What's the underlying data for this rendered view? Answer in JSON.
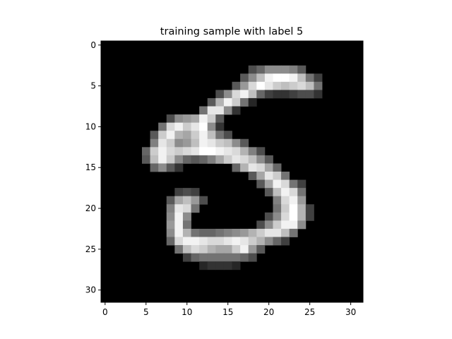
{
  "chart_data": {
    "type": "heatmap",
    "title": "training sample with label 5",
    "xlabel": "",
    "ylabel": "",
    "colormap": "gray",
    "value_range": [
      0,
      1
    ],
    "rows": 32,
    "cols": 32,
    "xlim": [
      -0.5,
      31.5
    ],
    "ylim": [
      31.5,
      -0.5
    ],
    "x_ticks": [
      0,
      5,
      10,
      15,
      20,
      25,
      30
    ],
    "y_ticks": [
      0,
      5,
      10,
      15,
      20,
      25,
      30
    ],
    "x_tick_labels": [
      "0",
      "5",
      "10",
      "15",
      "20",
      "25",
      "30"
    ],
    "y_tick_labels": [
      "0",
      "5",
      "10",
      "15",
      "20",
      "25",
      "30"
    ],
    "grid": false,
    "pixels": [
      [
        3,
        18,
        0.3
      ],
      [
        3,
        19,
        0.4
      ],
      [
        3,
        20,
        0.55
      ],
      [
        3,
        21,
        0.55
      ],
      [
        3,
        22,
        0.55
      ],
      [
        3,
        23,
        0.5
      ],
      [
        3,
        24,
        0.35
      ],
      [
        4,
        17,
        0.35
      ],
      [
        4,
        18,
        0.55
      ],
      [
        4,
        19,
        0.75
      ],
      [
        4,
        20,
        0.95
      ],
      [
        4,
        21,
        1.0
      ],
      [
        4,
        22,
        1.0
      ],
      [
        4,
        23,
        0.95
      ],
      [
        4,
        24,
        0.75
      ],
      [
        4,
        25,
        0.45
      ],
      [
        4,
        26,
        0.25
      ],
      [
        5,
        16,
        0.35
      ],
      [
        5,
        17,
        0.6
      ],
      [
        5,
        18,
        0.85
      ],
      [
        5,
        19,
        1.0
      ],
      [
        5,
        20,
        0.9
      ],
      [
        5,
        21,
        0.8
      ],
      [
        5,
        22,
        0.75
      ],
      [
        5,
        23,
        0.8
      ],
      [
        5,
        24,
        0.85
      ],
      [
        5,
        25,
        0.75
      ],
      [
        5,
        26,
        0.45
      ],
      [
        6,
        14,
        0.3
      ],
      [
        6,
        15,
        0.55
      ],
      [
        6,
        16,
        0.85
      ],
      [
        6,
        17,
        0.95
      ],
      [
        6,
        18,
        0.75
      ],
      [
        6,
        19,
        0.4
      ],
      [
        6,
        20,
        0.25
      ],
      [
        6,
        21,
        0.2
      ],
      [
        6,
        22,
        0.2
      ],
      [
        6,
        23,
        0.25
      ],
      [
        6,
        24,
        0.3
      ],
      [
        6,
        25,
        0.3
      ],
      [
        6,
        26,
        0.2
      ],
      [
        7,
        13,
        0.35
      ],
      [
        7,
        14,
        0.7
      ],
      [
        7,
        15,
        0.95
      ],
      [
        7,
        16,
        0.8
      ],
      [
        7,
        17,
        0.45
      ],
      [
        7,
        18,
        0.15
      ],
      [
        8,
        12,
        0.45
      ],
      [
        8,
        13,
        0.9
      ],
      [
        8,
        14,
        0.9
      ],
      [
        8,
        15,
        0.55
      ],
      [
        8,
        16,
        0.2
      ],
      [
        9,
        8,
        0.3
      ],
      [
        9,
        9,
        0.55
      ],
      [
        9,
        10,
        0.6
      ],
      [
        9,
        11,
        0.65
      ],
      [
        9,
        12,
        0.95
      ],
      [
        9,
        13,
        0.8
      ],
      [
        9,
        14,
        0.35
      ],
      [
        10,
        7,
        0.45
      ],
      [
        10,
        8,
        0.85
      ],
      [
        10,
        9,
        0.95
      ],
      [
        10,
        10,
        0.8
      ],
      [
        10,
        11,
        0.9
      ],
      [
        10,
        12,
        1.0
      ],
      [
        10,
        13,
        0.55
      ],
      [
        10,
        14,
        0.2
      ],
      [
        11,
        6,
        0.35
      ],
      [
        11,
        7,
        0.8
      ],
      [
        11,
        8,
        0.95
      ],
      [
        11,
        9,
        0.7
      ],
      [
        11,
        10,
        0.65
      ],
      [
        11,
        11,
        0.8
      ],
      [
        11,
        12,
        0.95
      ],
      [
        11,
        13,
        0.75
      ],
      [
        11,
        14,
        0.45
      ],
      [
        11,
        15,
        0.3
      ],
      [
        12,
        6,
        0.5
      ],
      [
        12,
        7,
        0.9
      ],
      [
        12,
        8,
        0.8
      ],
      [
        12,
        9,
        0.55
      ],
      [
        12,
        10,
        0.6
      ],
      [
        12,
        11,
        0.75
      ],
      [
        12,
        12,
        0.95
      ],
      [
        12,
        13,
        0.9
      ],
      [
        12,
        14,
        0.8
      ],
      [
        12,
        15,
        0.75
      ],
      [
        12,
        16,
        0.55
      ],
      [
        12,
        17,
        0.35
      ],
      [
        13,
        5,
        0.4
      ],
      [
        13,
        6,
        0.8
      ],
      [
        13,
        7,
        0.95
      ],
      [
        13,
        8,
        0.85
      ],
      [
        13,
        9,
        0.8
      ],
      [
        13,
        10,
        0.85
      ],
      [
        13,
        11,
        0.9
      ],
      [
        13,
        12,
        1.0
      ],
      [
        13,
        13,
        1.0
      ],
      [
        13,
        14,
        0.95
      ],
      [
        13,
        15,
        0.9
      ],
      [
        13,
        16,
        0.85
      ],
      [
        13,
        17,
        0.7
      ],
      [
        13,
        18,
        0.5
      ],
      [
        13,
        19,
        0.3
      ],
      [
        14,
        5,
        0.35
      ],
      [
        14,
        6,
        0.75
      ],
      [
        14,
        7,
        0.95
      ],
      [
        14,
        8,
        0.8
      ],
      [
        14,
        9,
        0.55
      ],
      [
        14,
        10,
        0.4
      ],
      [
        14,
        11,
        0.35
      ],
      [
        14,
        12,
        0.4
      ],
      [
        14,
        13,
        0.5
      ],
      [
        14,
        14,
        0.65
      ],
      [
        14,
        15,
        0.8
      ],
      [
        14,
        16,
        0.9
      ],
      [
        14,
        17,
        0.85
      ],
      [
        14,
        18,
        0.75
      ],
      [
        14,
        19,
        0.55
      ],
      [
        14,
        20,
        0.35
      ],
      [
        15,
        6,
        0.4
      ],
      [
        15,
        7,
        0.55
      ],
      [
        15,
        8,
        0.35
      ],
      [
        15,
        9,
        0.2
      ],
      [
        15,
        16,
        0.4
      ],
      [
        15,
        17,
        0.7
      ],
      [
        15,
        18,
        0.9
      ],
      [
        15,
        19,
        0.85
      ],
      [
        15,
        20,
        0.65
      ],
      [
        15,
        21,
        0.4
      ],
      [
        16,
        18,
        0.35
      ],
      [
        16,
        19,
        0.65
      ],
      [
        16,
        20,
        0.9
      ],
      [
        16,
        21,
        0.8
      ],
      [
        16,
        22,
        0.45
      ],
      [
        17,
        19,
        0.35
      ],
      [
        17,
        20,
        0.65
      ],
      [
        17,
        21,
        0.95
      ],
      [
        17,
        22,
        0.85
      ],
      [
        17,
        23,
        0.45
      ],
      [
        17,
        24,
        0.25
      ],
      [
        18,
        9,
        0.25
      ],
      [
        18,
        10,
        0.3
      ],
      [
        18,
        11,
        0.25
      ],
      [
        18,
        20,
        0.35
      ],
      [
        18,
        21,
        0.75
      ],
      [
        18,
        22,
        0.95
      ],
      [
        18,
        23,
        0.85
      ],
      [
        18,
        24,
        0.45
      ],
      [
        19,
        8,
        0.35
      ],
      [
        19,
        9,
        0.65
      ],
      [
        19,
        10,
        0.75
      ],
      [
        19,
        11,
        0.6
      ],
      [
        19,
        12,
        0.3
      ],
      [
        19,
        21,
        0.5
      ],
      [
        19,
        22,
        0.85
      ],
      [
        19,
        23,
        0.95
      ],
      [
        19,
        24,
        0.6
      ],
      [
        20,
        8,
        0.5
      ],
      [
        20,
        9,
        0.9
      ],
      [
        20,
        10,
        0.85
      ],
      [
        20,
        11,
        0.45
      ],
      [
        20,
        21,
        0.45
      ],
      [
        20,
        22,
        0.8
      ],
      [
        20,
        23,
        1.0
      ],
      [
        20,
        24,
        0.7
      ],
      [
        20,
        25,
        0.25
      ],
      [
        21,
        8,
        0.55
      ],
      [
        21,
        9,
        0.95
      ],
      [
        21,
        10,
        0.55
      ],
      [
        21,
        20,
        0.3
      ],
      [
        21,
        21,
        0.55
      ],
      [
        21,
        22,
        0.85
      ],
      [
        21,
        23,
        1.0
      ],
      [
        21,
        24,
        0.7
      ],
      [
        21,
        25,
        0.25
      ],
      [
        22,
        8,
        0.6
      ],
      [
        22,
        9,
        0.95
      ],
      [
        22,
        10,
        0.45
      ],
      [
        22,
        19,
        0.3
      ],
      [
        22,
        20,
        0.55
      ],
      [
        22,
        21,
        0.8
      ],
      [
        22,
        22,
        0.95
      ],
      [
        22,
        23,
        0.95
      ],
      [
        22,
        24,
        0.55
      ],
      [
        23,
        8,
        0.55
      ],
      [
        23,
        9,
        0.95
      ],
      [
        23,
        10,
        0.7
      ],
      [
        23,
        11,
        0.45
      ],
      [
        23,
        12,
        0.4
      ],
      [
        23,
        13,
        0.4
      ],
      [
        23,
        14,
        0.45
      ],
      [
        23,
        15,
        0.5
      ],
      [
        23,
        16,
        0.55
      ],
      [
        23,
        17,
        0.6
      ],
      [
        23,
        18,
        0.7
      ],
      [
        23,
        19,
        0.8
      ],
      [
        23,
        20,
        0.9
      ],
      [
        23,
        21,
        0.9
      ],
      [
        23,
        22,
        0.75
      ],
      [
        23,
        23,
        0.45
      ],
      [
        24,
        8,
        0.4
      ],
      [
        24,
        9,
        0.85
      ],
      [
        24,
        10,
        0.95
      ],
      [
        24,
        11,
        0.95
      ],
      [
        24,
        12,
        0.9
      ],
      [
        24,
        13,
        0.85
      ],
      [
        24,
        14,
        0.85
      ],
      [
        24,
        15,
        0.9
      ],
      [
        24,
        16,
        0.95
      ],
      [
        24,
        17,
        0.9
      ],
      [
        24,
        18,
        0.8
      ],
      [
        24,
        19,
        0.7
      ],
      [
        24,
        20,
        0.55
      ],
      [
        24,
        21,
        0.4
      ],
      [
        24,
        22,
        0.25
      ],
      [
        25,
        9,
        0.45
      ],
      [
        25,
        10,
        0.75
      ],
      [
        25,
        11,
        0.85
      ],
      [
        25,
        12,
        0.8
      ],
      [
        25,
        13,
        0.7
      ],
      [
        25,
        14,
        0.65
      ],
      [
        25,
        15,
        0.65
      ],
      [
        25,
        16,
        0.8
      ],
      [
        25,
        17,
        0.95
      ],
      [
        25,
        18,
        0.6
      ],
      [
        25,
        19,
        0.35
      ],
      [
        26,
        10,
        0.25
      ],
      [
        26,
        11,
        0.4
      ],
      [
        26,
        12,
        0.45
      ],
      [
        26,
        13,
        0.45
      ],
      [
        26,
        14,
        0.45
      ],
      [
        26,
        15,
        0.45
      ],
      [
        26,
        16,
        0.45
      ],
      [
        26,
        17,
        0.4
      ],
      [
        26,
        18,
        0.3
      ],
      [
        27,
        12,
        0.15
      ],
      [
        27,
        13,
        0.2
      ],
      [
        27,
        14,
        0.2
      ],
      [
        27,
        15,
        0.2
      ],
      [
        27,
        16,
        0.15
      ]
    ]
  }
}
